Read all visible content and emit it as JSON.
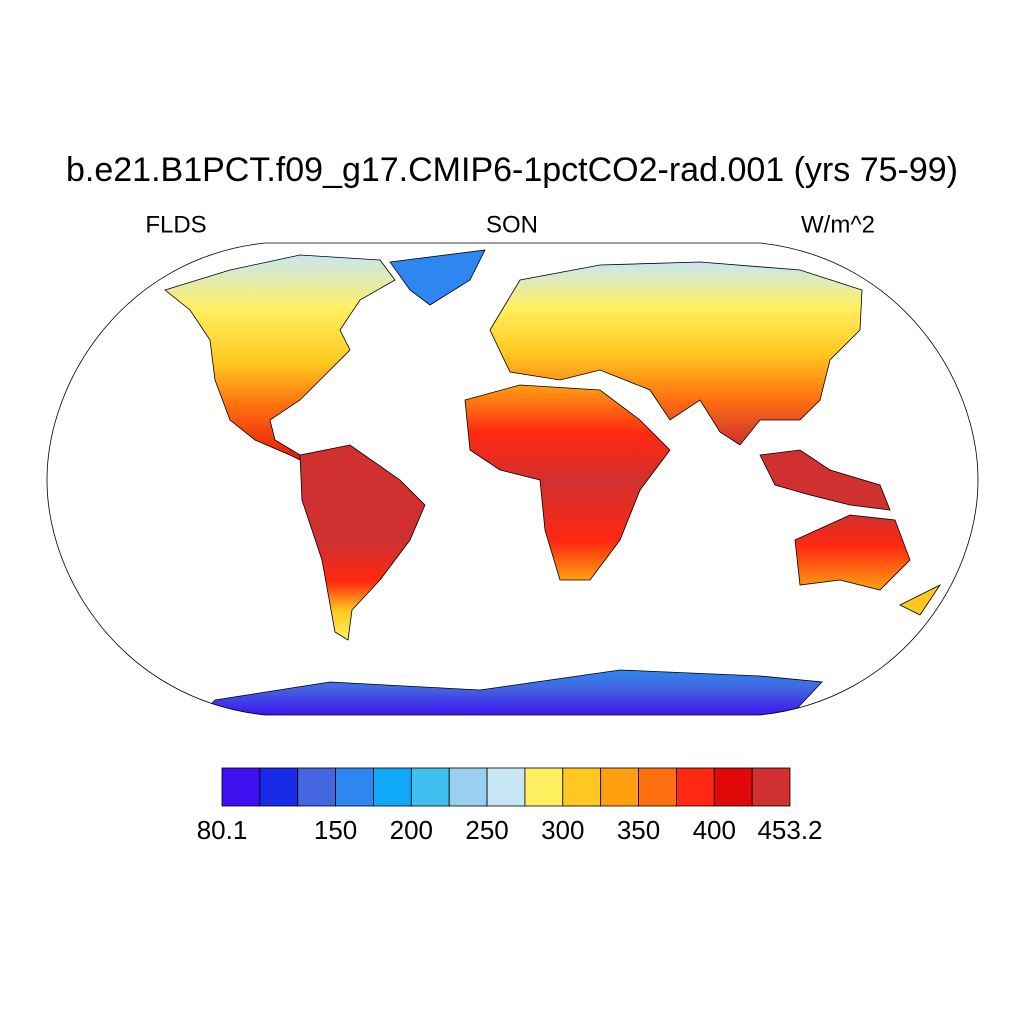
{
  "title": "b.e21.B1PCT.f09_g17.CMIP6-1pctCO2-rad.001 (yrs 75-99)",
  "left_string": "FLDS",
  "center_string": "SON",
  "right_string": "W/m^2",
  "colorbar": {
    "type": "colorbar",
    "lim": [
      80.1,
      453.2
    ],
    "levels": [
      100,
      125,
      150,
      175,
      200,
      225,
      250,
      275,
      300,
      325,
      350,
      375,
      400,
      425
    ],
    "colors": [
      "#3e10f0",
      "#1a2be8",
      "#4366e0",
      "#2e86f0",
      "#10a8f8",
      "#40c0f0",
      "#98d0ee",
      "#c8e6f4",
      "#fff060",
      "#ffc820",
      "#ffa010",
      "#ff7010",
      "#ff2810",
      "#e00808",
      "#d03030"
    ],
    "ticks": [
      80.1,
      150,
      200,
      250,
      300,
      350,
      400,
      453.2
    ]
  }
}
